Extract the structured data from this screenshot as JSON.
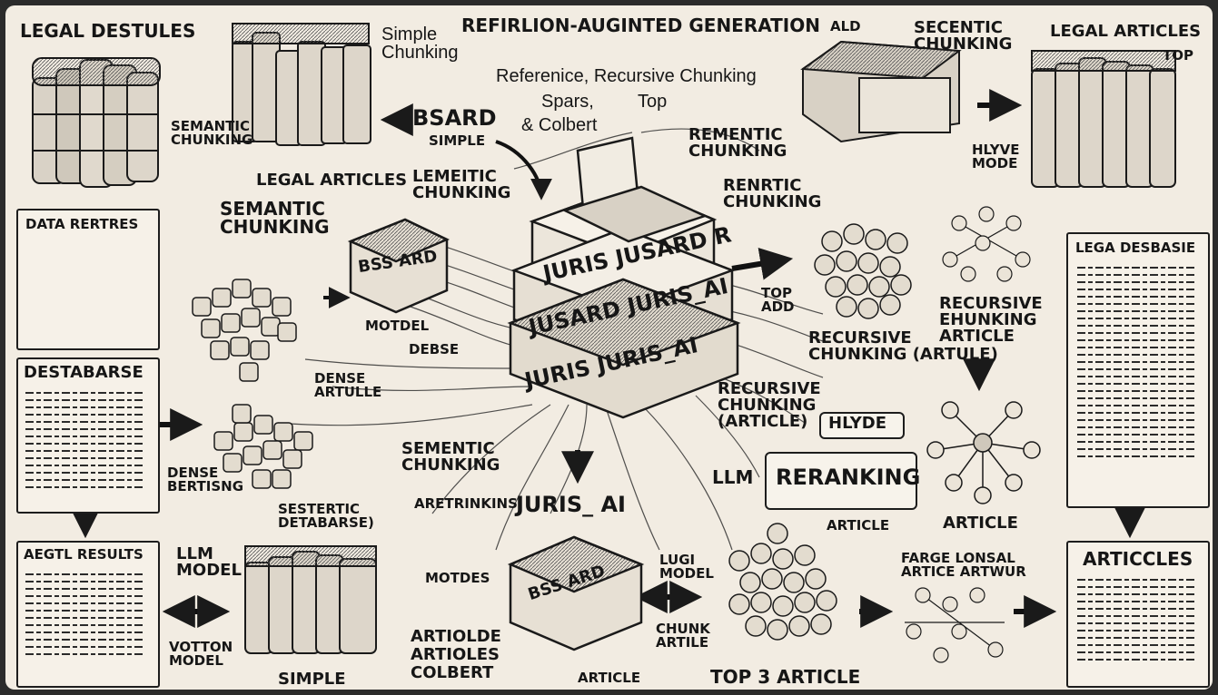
{
  "title": "REFIRLION-AUGINTED GENERATION",
  "title_suffix": "ALD",
  "left": {
    "legal_destules": "LEGAL DESTULES",
    "semantic_chunking_small": "SEMANTIC\nCHUNKING",
    "data_rertres": "DATA RERTRES",
    "destabarse": "DESTABARSE",
    "dense_bertisng": "DENSE\nBERTISNG",
    "legal_results": "AEGTL RESULTS",
    "llm_model": "LLM\nMODEL",
    "votton_model": "VOTTON\nMODEL"
  },
  "center_left": {
    "simple_chunking": "Simple\nChunking",
    "legal_articles": "LEGAL ARTICLES",
    "semantic_chunking": "SEMANTIC\nCHUNKING",
    "bsard": "BSARD",
    "simple": "SIMPLE",
    "lemeitic_chunking": "LEMEITIC\nCHUNKING",
    "bs_ard_box": "BSS ARD",
    "motdel": "MOTDEL",
    "debse": "DEBSE",
    "dense_artulle": "DENSE\nARTULLE",
    "sestertic_detabarse": "SESTERTIC\nDETABARSE)",
    "simple_bottom": "SIMPLE"
  },
  "center": {
    "reference_line": "Referenice,  Recursive Chunking",
    "spars": "Spars,",
    "top": "Top",
    "colbert": "& Colbert",
    "rementic_chunking": "REMENTIC\nCHUNKING",
    "renrtic_chunking": "RENRTIC\nCHUNKING",
    "stack_1": "JURIS   JUSARD   R",
    "stack_2": "JUSARD   JURIS_AI",
    "stack_3": "JURIS   JURIS_AI",
    "sementic_chunking": "SEMENTIC\nCHUNKING",
    "juris_ai": "JURIS_ AI",
    "aretrinkins": "ARETRINKINS",
    "motdes": "MOTDES",
    "artiolde": "ARTIOLDE\nARTIOLES\nCOLBERT",
    "bsard_box_bottom": "BSS  ARD",
    "lugi_model": "LUGI\nMODEL",
    "chunk_artile": "CHUNK\nARTILE",
    "article": "ARTICLE",
    "top_3_article": "TOP 3 ARTICLE"
  },
  "right": {
    "secentic_chunking": "SECENTIC\nCHUNKING",
    "legal_articles": "LEGAL ARTICLES",
    "top": "TOP",
    "hlyve_mode": "HLYVE\nMODE",
    "top_add": "TOP\nADD",
    "recursive_ehunking_article": "RECURSIVE\nEHUNKING\nARTICLE",
    "recursive_chunking_artule": "RECURSIVE\nCHUNKING (ARTULE)",
    "recursive_chunking_article": "RECURSIVE\nCHUNKING\n(ARTICLE)",
    "hlyde": "HLYDE",
    "llm": "LLM",
    "reranking": "RERANKING",
    "legal_desbasie": "LEGA DESBASIE",
    "article_graph": "ARTICLE",
    "article_small": "ARTICLE",
    "farge_lonsal": "FARGE LONSAL\nARTICE ARTWUR",
    "articles": "ARTICCLES"
  }
}
